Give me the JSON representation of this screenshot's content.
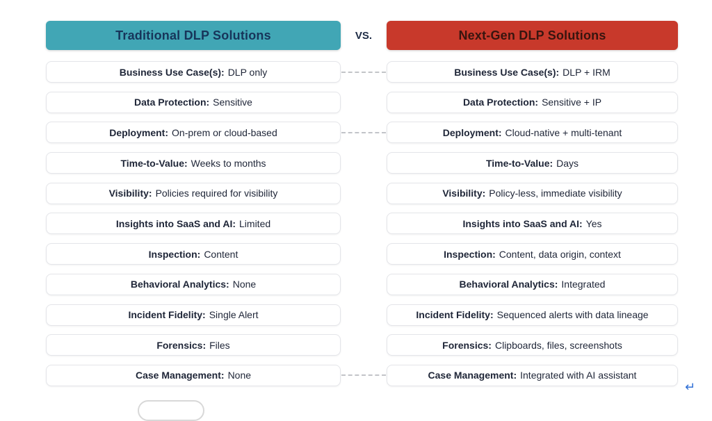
{
  "header": {
    "left_title": "Traditional DLP Solutions",
    "vs_label": "VS.",
    "right_title": "Next-Gen DLP Solutions"
  },
  "colors": {
    "left_header_bg": "#41a6b5",
    "right_header_bg": "#c8392b",
    "left_header_text": "#17355a",
    "right_header_text": "#38150f",
    "row_text": "#1e2537",
    "connector": "#c2c4c8",
    "return_icon": "#2f6fd6",
    "vs_text": "#1d2b45"
  },
  "rows": [
    {
      "label": "Business Use Case(s):",
      "left_value": "DLP only",
      "right_value": "DLP + IRM",
      "connector": true
    },
    {
      "label": "Data Protection:",
      "left_value": "Sensitive",
      "right_value": "Sensitive + IP",
      "connector": false
    },
    {
      "label": "Deployment:",
      "left_value": "On-prem or cloud-based",
      "right_value": "Cloud-native + multi-tenant",
      "connector": true
    },
    {
      "label": "Time-to-Value:",
      "left_value": "Weeks to months",
      "right_value": "Days",
      "connector": false
    },
    {
      "label": "Visibility:",
      "left_value": "Policies required for visibility",
      "right_value": "Policy-less, immediate visibility",
      "connector": false
    },
    {
      "label": "Insights into SaaS and AI:",
      "left_value": "Limited",
      "right_value": "Yes",
      "connector": false
    },
    {
      "label": "Inspection:",
      "left_value": "Content",
      "right_value": "Content, data origin, context",
      "connector": false
    },
    {
      "label": "Behavioral Analytics:",
      "left_value": "None",
      "right_value": "Integrated",
      "connector": false
    },
    {
      "label": "Incident Fidelity:",
      "left_value": "Single Alert",
      "right_value": "Sequenced alerts with data lineage",
      "connector": false
    },
    {
      "label": "Forensics:",
      "left_value": "Files",
      "right_value": "Clipboards, files, screenshots",
      "connector": false
    },
    {
      "label": "Case Management:",
      "left_value": "None",
      "right_value": "Integrated with AI assistant",
      "connector": true
    }
  ],
  "footer": {
    "return_mark": "↵"
  }
}
